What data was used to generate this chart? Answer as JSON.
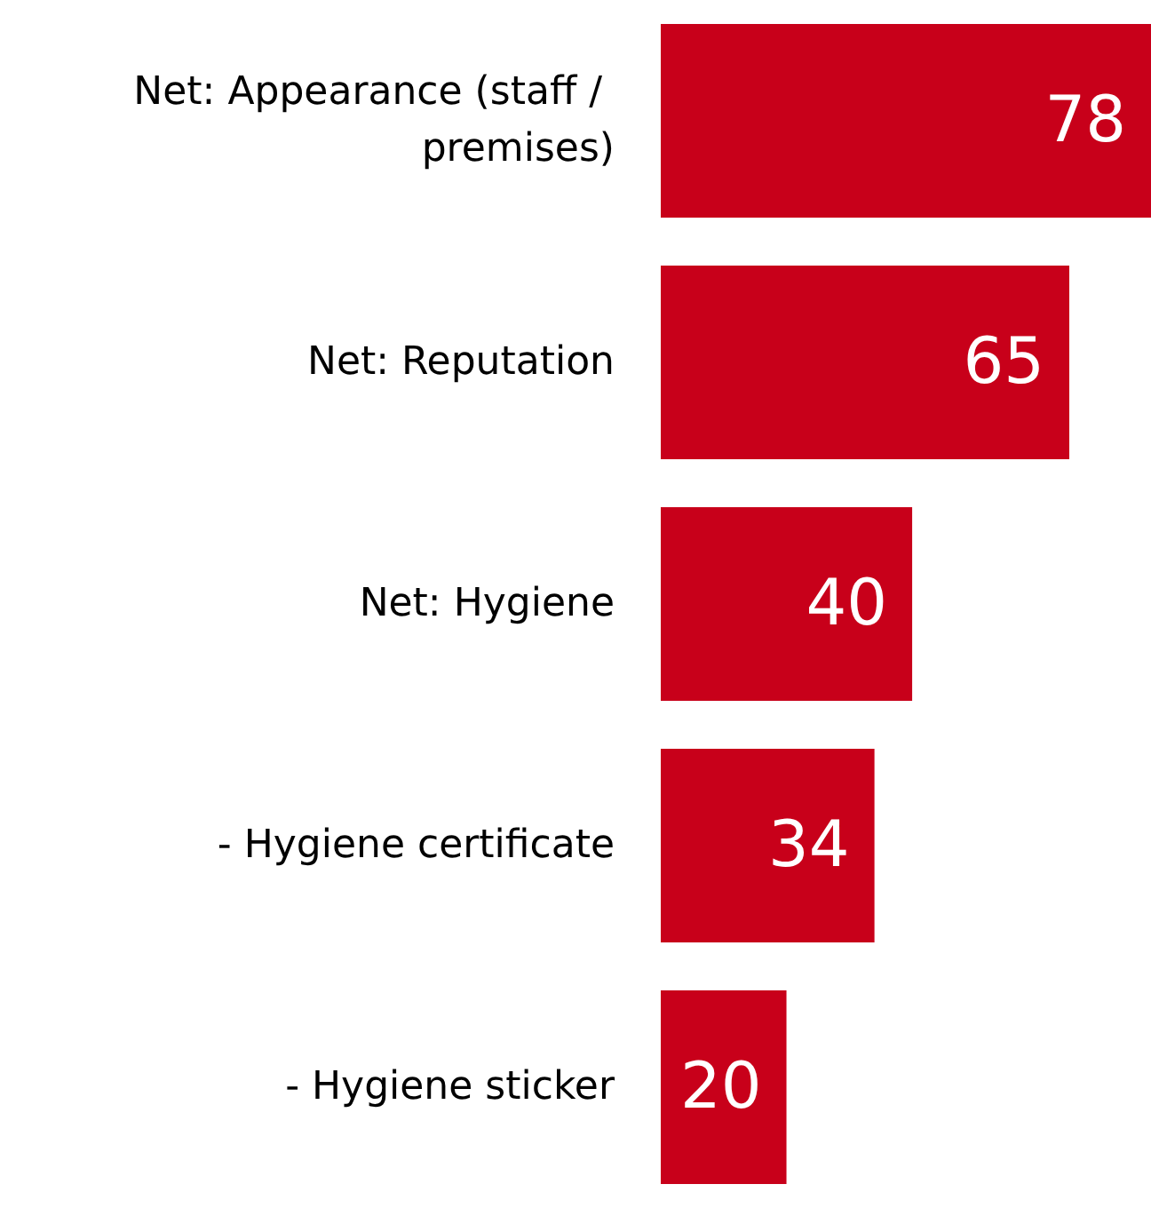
{
  "chart_data": {
    "type": "bar",
    "orientation": "horizontal",
    "categories": [
      "Net: Appearance (staff / premises)",
      "Net: Reputation",
      "Net: Hygiene",
      "- Hygiene certificate",
      "- Hygiene sticker"
    ],
    "values": [
      78,
      65,
      40,
      34,
      20
    ],
    "color": "#c8001a",
    "data_labels": true
  }
}
